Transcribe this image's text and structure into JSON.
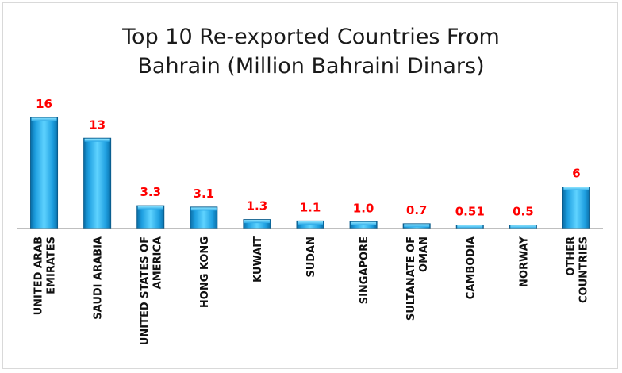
{
  "chart_data": {
    "type": "bar",
    "title": "Top 10 Re-exported Countries From Bahrain (Million Bahraini Dinars)",
    "title_lines": [
      "Top 10 Re-exported Countries From",
      "Bahrain (Million Bahraini Dinars)"
    ],
    "categories": [
      [
        "UNITED ARAB",
        "EMIRATES"
      ],
      [
        "SAUDI ARABIA"
      ],
      [
        "UNITED STATES OF",
        "AMERICA"
      ],
      [
        "HONG KONG"
      ],
      [
        "KUWAIT"
      ],
      [
        "SUDAN"
      ],
      [
        "SINGAPORE"
      ],
      [
        "SULTANATE OF",
        "OMAN"
      ],
      [
        "CAMBODIA"
      ],
      [
        "NORWAY"
      ],
      [
        "OTHER",
        "COUNTRIES"
      ]
    ],
    "values": [
      16,
      13,
      3.3,
      3.1,
      1.3,
      1.1,
      1.0,
      0.7,
      0.51,
      0.5,
      6
    ],
    "data_labels": [
      "16",
      "13",
      "3.3",
      "3.1",
      "1.3",
      "1.1",
      "1.0",
      "0.7",
      "0.51",
      "0.5",
      "6"
    ],
    "ylim": [
      0,
      16
    ],
    "grid": false,
    "legend": "none",
    "colors": {
      "bar_light": "#5fd3ff",
      "bar_main": "#1ea7e6",
      "bar_dark": "#0a6fa8",
      "label": "#ff0000",
      "axis": "#7f7f7f"
    }
  }
}
